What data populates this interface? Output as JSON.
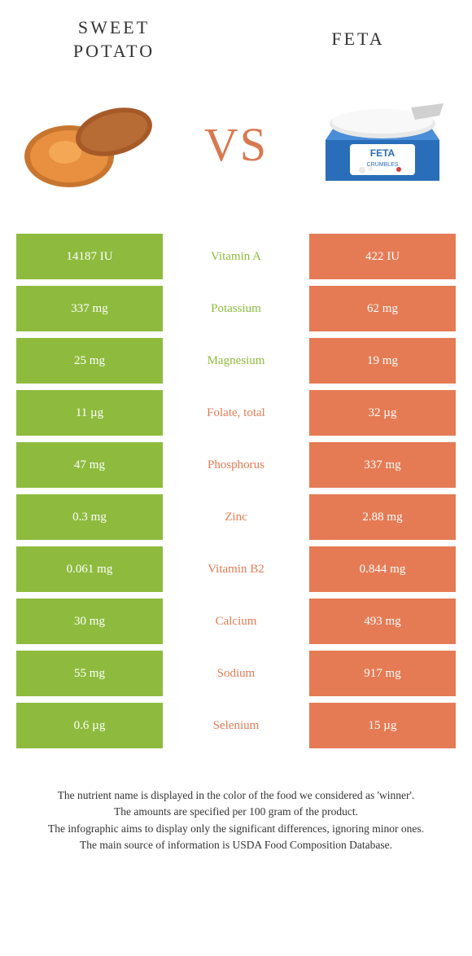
{
  "colors": {
    "green": "#8ebb3e",
    "orange": "#e57b54",
    "background": "#ffffff",
    "text": "#333333",
    "vs": "#d97850"
  },
  "header": {
    "left_title_line1": "SWEET",
    "left_title_line2": "POTATO",
    "right_title": "FETA",
    "vs": "VS"
  },
  "rows": [
    {
      "left": "14187 IU",
      "label": "Vitamin A",
      "right": "422 IU",
      "winner": "left"
    },
    {
      "left": "337 mg",
      "label": "Potassium",
      "right": "62 mg",
      "winner": "left"
    },
    {
      "left": "25 mg",
      "label": "Magnesium",
      "right": "19 mg",
      "winner": "left"
    },
    {
      "left": "11 µg",
      "label": "Folate, total",
      "right": "32 µg",
      "winner": "right"
    },
    {
      "left": "47 mg",
      "label": "Phosphorus",
      "right": "337 mg",
      "winner": "right"
    },
    {
      "left": "0.3 mg",
      "label": "Zinc",
      "right": "2.88 mg",
      "winner": "right"
    },
    {
      "left": "0.061 mg",
      "label": "Vitamin B2",
      "right": "0.844 mg",
      "winner": "right"
    },
    {
      "left": "30 mg",
      "label": "Calcium",
      "right": "493 mg",
      "winner": "right"
    },
    {
      "left": "55 mg",
      "label": "Sodium",
      "right": "917 mg",
      "winner": "right"
    },
    {
      "left": "0.6 µg",
      "label": "Selenium",
      "right": "15 µg",
      "winner": "right"
    }
  ],
  "footer": {
    "line1": "The nutrient name is displayed in the color of the food we considered as 'winner'.",
    "line2": "The amounts are specified per 100 gram of the product.",
    "line3": "The infographic aims to display only the significant differences, ignoring minor ones.",
    "line4": "The main source of information is USDA Food Composition Database."
  }
}
